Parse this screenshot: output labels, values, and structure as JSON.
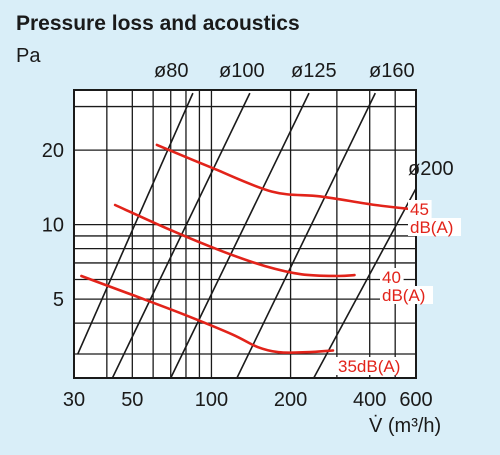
{
  "chart_data": {
    "type": "line",
    "title": "Pressure loss and acoustics",
    "ylabel": "Pa",
    "xlabel": "V̇ (m³/h)",
    "x_scale": "log",
    "y_scale": "log",
    "xlim": [
      30,
      600
    ],
    "ylim": [
      2.4,
      35
    ],
    "x_ticks": [
      30,
      50,
      100,
      200,
      400,
      600
    ],
    "x_tick_labels": [
      "30",
      "50",
      "100",
      "200",
      "400",
      "600"
    ],
    "y_ticks": [
      5,
      10,
      20
    ],
    "y_tick_labels": [
      "5",
      "10",
      "20"
    ],
    "grid": true,
    "duct_lines": [
      {
        "label": "ø80",
        "points": [
          [
            31,
            3
          ],
          [
            85,
            34
          ]
        ]
      },
      {
        "label": "ø100",
        "points": [
          [
            42,
            2.4
          ],
          [
            140,
            34
          ]
        ]
      },
      {
        "label": "ø125",
        "points": [
          [
            70,
            2.4
          ],
          [
            235,
            34
          ]
        ]
      },
      {
        "label": "ø160",
        "points": [
          [
            125,
            2.4
          ],
          [
            420,
            34
          ]
        ]
      },
      {
        "label": "ø200",
        "points": [
          [
            245,
            2.4
          ],
          [
            600,
            14
          ]
        ]
      }
    ],
    "series": [
      {
        "name": "45 dB(A)",
        "label": "45\ndB(A)",
        "color": "#e2231a",
        "points": [
          [
            62,
            21
          ],
          [
            100,
            17
          ],
          [
            170,
            13.6
          ],
          [
            260,
            13
          ],
          [
            420,
            12
          ],
          [
            600,
            11.5
          ]
        ]
      },
      {
        "name": "40 dB(A)",
        "label": "40\ndB(A)",
        "color": "#e2231a",
        "points": [
          [
            43,
            12
          ],
          [
            70,
            9.5
          ],
          [
            110,
            7.8
          ],
          [
            160,
            6.8
          ],
          [
            220,
            6.3
          ],
          [
            300,
            6.2
          ],
          [
            350,
            6.25
          ]
        ]
      },
      {
        "name": "35dB(A)",
        "label": "35dB(A)",
        "color": "#e2231a",
        "points": [
          [
            32,
            6.2
          ],
          [
            50,
            5.2
          ],
          [
            80,
            4.3
          ],
          [
            120,
            3.6
          ],
          [
            150,
            3.2
          ],
          [
            180,
            3.05
          ],
          [
            230,
            3.05
          ],
          [
            290,
            3.1
          ]
        ]
      }
    ]
  }
}
